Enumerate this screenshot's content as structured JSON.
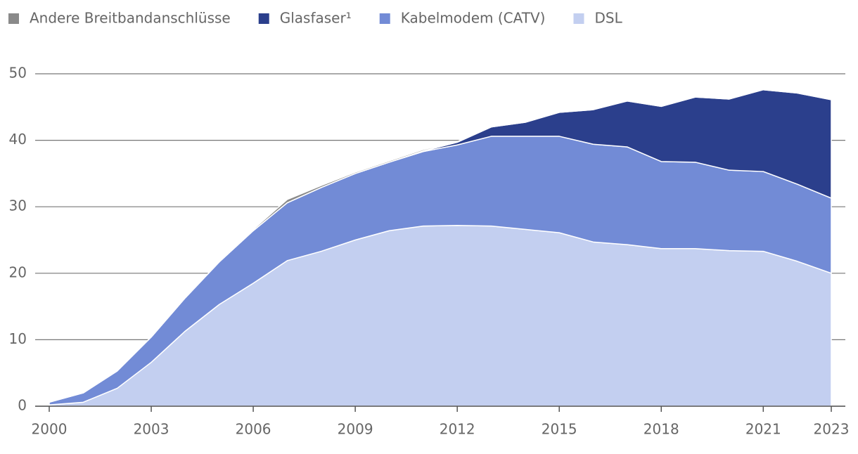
{
  "chart_data": {
    "type": "stacked-area",
    "x": [
      2000,
      2001,
      2002,
      2003,
      2004,
      2005,
      2006,
      2007,
      2008,
      2009,
      2010,
      2011,
      2012,
      2013,
      2014,
      2015,
      2016,
      2017,
      2018,
      2019,
      2020,
      2021,
      2022,
      2023
    ],
    "series": [
      {
        "name": "Andere Breitbandanschlüsse",
        "color": "#8a8a8a",
        "values": [
          0,
          0,
          0,
          0,
          0,
          0,
          0.2,
          0.5,
          0.3,
          0.2,
          0.2,
          0.2,
          0.1,
          0,
          0,
          0,
          0,
          0,
          0,
          0,
          0,
          0,
          0,
          0
        ]
      },
      {
        "name": "Glasfaser¹",
        "color": "#2b3f8c",
        "values": [
          0,
          0,
          0,
          0,
          0,
          0,
          0,
          0,
          0,
          0,
          0,
          0.1,
          0.4,
          1.4,
          2.1,
          3.6,
          5.2,
          6.9,
          8.3,
          9.8,
          10.7,
          12.3,
          13.7,
          14.8
        ]
      },
      {
        "name": "Kabelmodem (CATV)",
        "color": "#728bd6",
        "values": [
          0.4,
          1.4,
          2.6,
          3.8,
          5.0,
          6.4,
          7.9,
          8.7,
          9.6,
          10.0,
          10.3,
          11.2,
          12.1,
          13.5,
          14.0,
          14.5,
          14.7,
          14.7,
          13.1,
          13.0,
          12.1,
          12.0,
          11.6,
          11.3
        ]
      },
      {
        "name": "DSL",
        "color": "#c3cff0",
        "values": [
          0.2,
          0.6,
          2.7,
          6.6,
          11.3,
          15.3,
          18.5,
          21.9,
          23.3,
          25.0,
          26.4,
          27.1,
          27.2,
          27.1,
          26.6,
          26.1,
          24.7,
          24.3,
          23.7,
          23.7,
          23.4,
          23.3,
          21.8,
          20.0
        ]
      }
    ],
    "xlim": [
      2000,
      2023
    ],
    "xticks": [
      2000,
      2003,
      2006,
      2009,
      2012,
      2015,
      2018,
      2021,
      2023
    ],
    "ylim": [
      0,
      50
    ],
    "yticks": [
      0,
      10,
      20,
      30,
      40,
      50
    ],
    "grid": true
  }
}
